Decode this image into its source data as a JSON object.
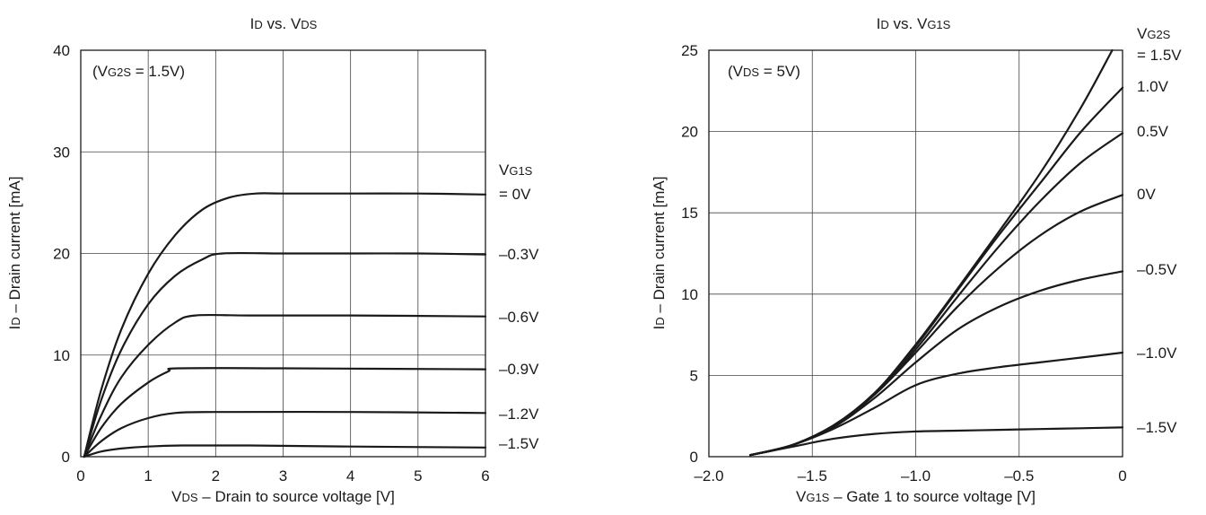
{
  "chart_data": [
    {
      "type": "line",
      "title": "ID vs. VDS",
      "xlabel": "VDS – Drain to source voltage [V]",
      "ylabel": "ID – Drain current [mA]",
      "condition": "(VG2S = 1.5V)",
      "xlim": [
        0,
        6
      ],
      "ylim": [
        0,
        40
      ],
      "xticks": [
        "0",
        "1",
        "2",
        "3",
        "4",
        "5",
        "6"
      ],
      "yticks": [
        "0",
        "10",
        "20",
        "30",
        "40"
      ],
      "legend_title": "VG1S",
      "grid": true,
      "series": [
        {
          "name": "= 0V",
          "x": [
            0.05,
            0.3,
            0.6,
            1.0,
            1.4,
            1.8,
            2.2,
            2.6,
            3.0,
            4.0,
            5.0,
            6.0
          ],
          "y": [
            0,
            6.5,
            12.5,
            18,
            21.8,
            24.3,
            25.5,
            25.9,
            25.9,
            25.9,
            25.9,
            25.8
          ]
        },
        {
          "name": "–0.3V",
          "x": [
            0.05,
            0.3,
            0.6,
            1.0,
            1.4,
            1.8,
            2.1,
            3.0,
            4.0,
            5.0,
            6.0
          ],
          "y": [
            0,
            5.5,
            10.5,
            15,
            17.8,
            19.4,
            20,
            20,
            20,
            20,
            19.9
          ]
        },
        {
          "name": "–0.6V",
          "x": [
            0.05,
            0.3,
            0.6,
            1.0,
            1.4,
            1.7,
            2.5,
            4.0,
            6.0
          ],
          "y": [
            0,
            4,
            7.8,
            11,
            13.2,
            13.9,
            13.9,
            13.9,
            13.8
          ]
        },
        {
          "name": "–0.9V",
          "x": [
            0.05,
            0.3,
            0.6,
            1.0,
            1.3,
            1.45,
            3.0,
            6.0
          ],
          "y": [
            0,
            2.8,
            5.2,
            7.3,
            8.4,
            8.7,
            8.7,
            8.6
          ]
        },
        {
          "name": "–1.2V",
          "x": [
            0.05,
            0.3,
            0.6,
            1.0,
            1.4,
            2.0,
            4.0,
            6.0
          ],
          "y": [
            0,
            1.5,
            2.8,
            3.8,
            4.3,
            4.4,
            4.4,
            4.3
          ]
        },
        {
          "name": "–1.5V",
          "x": [
            0.05,
            0.3,
            0.6,
            1.0,
            1.5,
            2.5,
            4.0,
            6.0
          ],
          "y": [
            0,
            0.5,
            0.8,
            1.0,
            1.1,
            1.1,
            1.0,
            0.9
          ]
        }
      ]
    },
    {
      "type": "line",
      "title": "ID vs. VG1S",
      "xlabel": "VG1S – Gate 1 to source voltage [V]",
      "ylabel": "ID – Drain current [mA]",
      "condition": "(VDS = 5V)",
      "xlim": [
        -2.0,
        0
      ],
      "ylim": [
        0,
        25
      ],
      "xticks": [
        "–2.0",
        "–1.5",
        "–1.0",
        "–0.5",
        "0"
      ],
      "yticks": [
        "0",
        "5",
        "10",
        "15",
        "20",
        "25"
      ],
      "legend_title": "VG2S",
      "grid": true,
      "series": [
        {
          "name": "= 1.5V",
          "x": [
            -1.8,
            -1.6,
            -1.4,
            -1.2,
            -1.0,
            -0.8,
            -0.6,
            -0.4,
            -0.2,
            -0.05
          ],
          "y": [
            0.1,
            0.7,
            1.9,
            3.9,
            6.9,
            10.3,
            13.8,
            17.4,
            21.5,
            25.0
          ]
        },
        {
          "name": "1.0V",
          "x": [
            -1.8,
            -1.6,
            -1.4,
            -1.2,
            -1.0,
            -0.8,
            -0.6,
            -0.4,
            -0.2,
            0.0
          ],
          "y": [
            0.1,
            0.7,
            1.9,
            3.9,
            6.8,
            10.2,
            13.6,
            16.8,
            20.0,
            22.7
          ]
        },
        {
          "name": "0.5V",
          "x": [
            -1.8,
            -1.6,
            -1.4,
            -1.2,
            -1.0,
            -0.8,
            -0.6,
            -0.4,
            -0.2,
            0.0
          ],
          "y": [
            0.1,
            0.7,
            1.9,
            3.8,
            6.6,
            9.8,
            12.9,
            15.7,
            18.1,
            19.9
          ]
        },
        {
          "name": "0V",
          "x": [
            -1.8,
            -1.6,
            -1.4,
            -1.2,
            -1.0,
            -0.8,
            -0.6,
            -0.4,
            -0.2,
            0.0
          ],
          "y": [
            0.1,
            0.7,
            1.9,
            3.8,
            6.4,
            9.2,
            11.6,
            13.6,
            15.1,
            16.1
          ]
        },
        {
          "name": "–0.5V",
          "x": [
            -1.8,
            -1.6,
            -1.4,
            -1.2,
            -1.0,
            -0.8,
            -0.6,
            -0.4,
            -0.2,
            0.0
          ],
          "y": [
            0.1,
            0.7,
            1.8,
            3.6,
            5.8,
            7.8,
            9.2,
            10.2,
            10.9,
            11.4
          ]
        },
        {
          "name": "–1.0V",
          "x": [
            -1.8,
            -1.6,
            -1.4,
            -1.2,
            -1.0,
            -0.8,
            -0.6,
            -0.4,
            -0.2,
            0.0
          ],
          "y": [
            0.1,
            0.7,
            1.7,
            3.0,
            4.4,
            5.1,
            5.5,
            5.8,
            6.1,
            6.4
          ]
        },
        {
          "name": "–1.5V",
          "x": [
            -1.8,
            -1.6,
            -1.4,
            -1.2,
            -1.0,
            -0.8,
            -0.6,
            -0.4,
            -0.2,
            0.0
          ],
          "y": [
            0.1,
            0.6,
            1.1,
            1.4,
            1.55,
            1.6,
            1.65,
            1.7,
            1.75,
            1.8
          ]
        }
      ]
    }
  ]
}
